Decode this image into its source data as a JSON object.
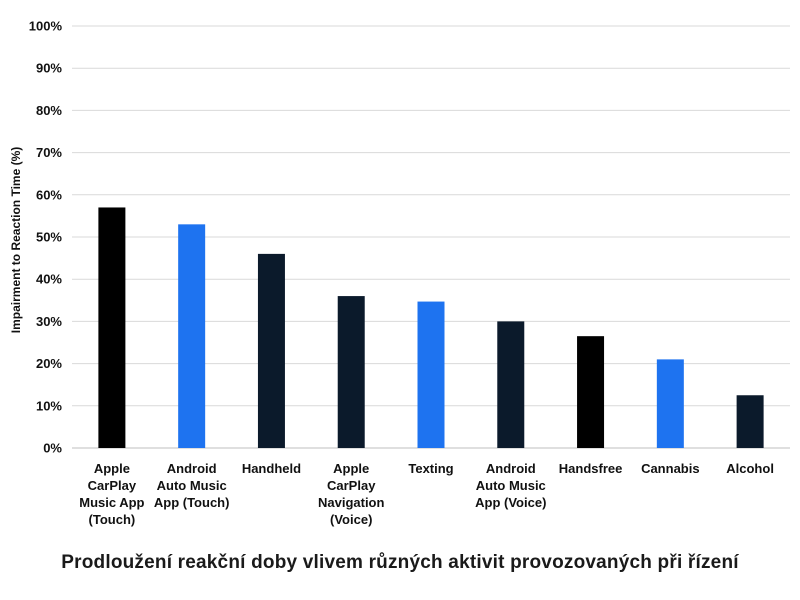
{
  "caption": "Prodloužení reakční doby vlivem různých aktivit provozovaných při řízení",
  "colors": {
    "black": "#000000",
    "blue": "#1E73F0",
    "navy": "#0B1A2B",
    "grid": "#D9D9D9"
  },
  "chart_data": {
    "type": "bar",
    "ylabel": "Impairment to Reaction Time (%)",
    "xlabel": "",
    "ylim": [
      0,
      100
    ],
    "yticks": [
      "0%",
      "10%",
      "20%",
      "30%",
      "40%",
      "50%",
      "60%",
      "70%",
      "80%",
      "90%",
      "100%"
    ],
    "grid": true,
    "legend": "none",
    "categories": [
      [
        "Apple",
        "CarPlay",
        "Music App",
        "(Touch)"
      ],
      [
        "Android",
        "Auto Music",
        "App (Touch)"
      ],
      [
        "Handheld"
      ],
      [
        "Apple",
        "CarPlay",
        "Navigation",
        "(Voice)"
      ],
      [
        "Texting"
      ],
      [
        "Android",
        "Auto Music",
        "App (Voice)"
      ],
      [
        "Handsfree"
      ],
      [
        "Cannabis"
      ],
      [
        "Alcohol"
      ]
    ],
    "values": [
      57,
      53,
      46,
      36,
      34.7,
      30,
      26.5,
      21,
      12.5
    ],
    "bar_colors": [
      "#000000",
      "#1E73F0",
      "#0B1A2B",
      "#0B1A2B",
      "#1E73F0",
      "#0B1A2B",
      "#000000",
      "#1E73F0",
      "#0B1A2B"
    ]
  }
}
